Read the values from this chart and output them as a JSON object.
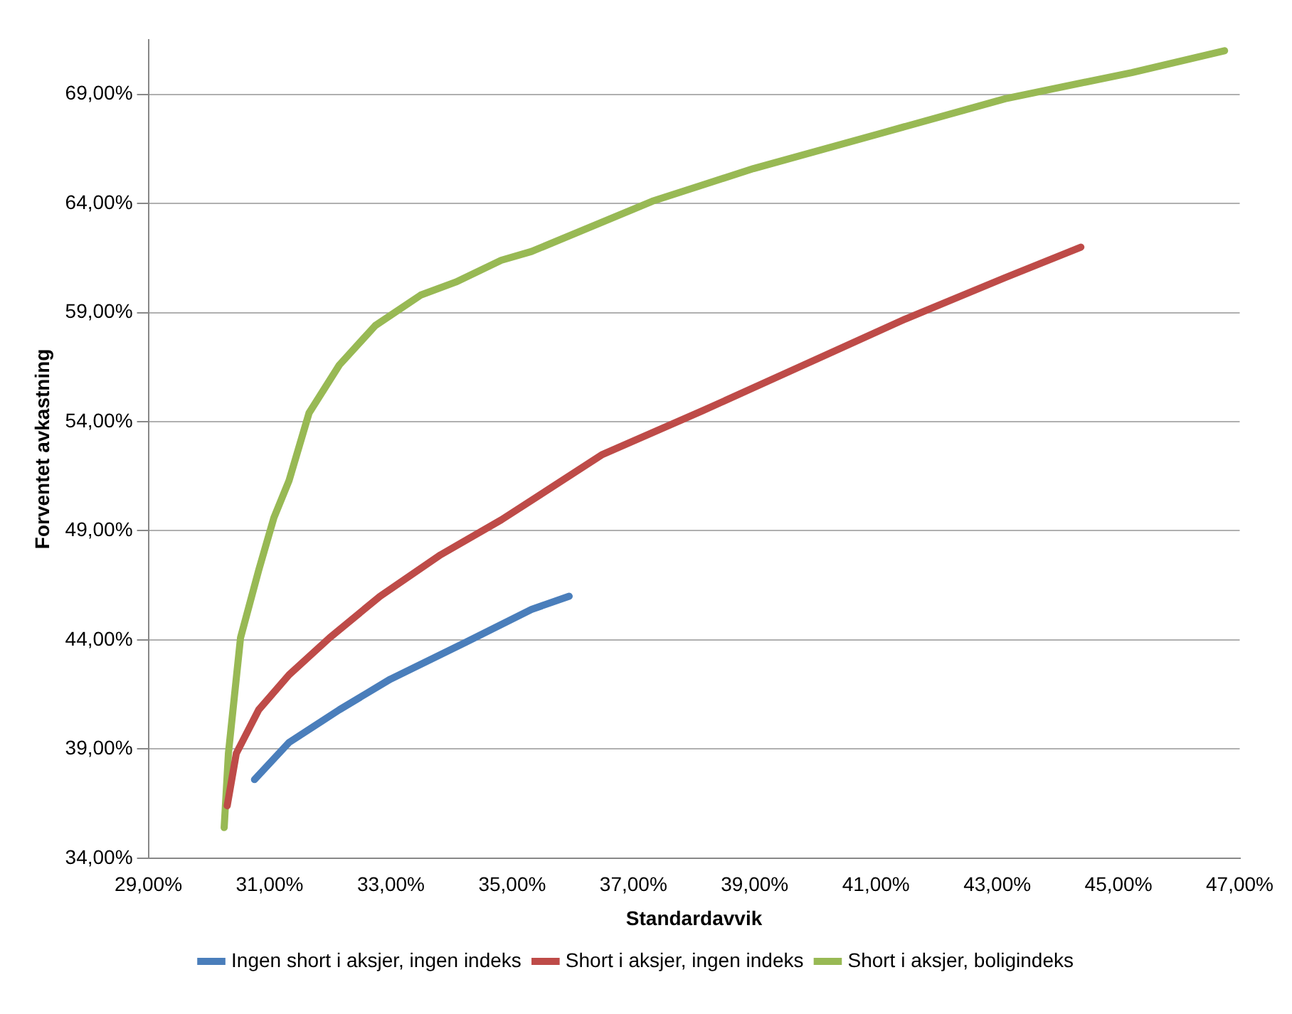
{
  "chart_data": {
    "type": "line",
    "xlabel": "Standardavvik",
    "ylabel": "Forventet avkastning",
    "xlim": [
      29,
      47
    ],
    "ylim": [
      34,
      71.5
    ],
    "xticks": [
      {
        "value": 29,
        "label": "29,00%"
      },
      {
        "value": 31,
        "label": "31,00%"
      },
      {
        "value": 33,
        "label": "33,00%"
      },
      {
        "value": 35,
        "label": "35,00%"
      },
      {
        "value": 37,
        "label": "37,00%"
      },
      {
        "value": 39,
        "label": "39,00%"
      },
      {
        "value": 41,
        "label": "41,00%"
      },
      {
        "value": 43,
        "label": "43,00%"
      },
      {
        "value": 45,
        "label": "45,00%"
      },
      {
        "value": 47,
        "label": "47,00%"
      }
    ],
    "yticks": [
      {
        "value": 34,
        "label": "34,00%"
      },
      {
        "value": 39,
        "label": "39,00%"
      },
      {
        "value": 44,
        "label": "44,00%"
      },
      {
        "value": 49,
        "label": "49,00%"
      },
      {
        "value": 54,
        "label": "54,00%"
      },
      {
        "value": 59,
        "label": "59,00%"
      },
      {
        "value": 64,
        "label": "64,00%"
      },
      {
        "value": 69,
        "label": "69,00%"
      }
    ],
    "grid": "y",
    "legend": "bottom",
    "marker": "none",
    "line_style": "solid",
    "series": [
      {
        "name": "Ingen short i aksjer, ingen indeks",
        "color": "#4a7ebb",
        "x": [
          30.75,
          31.32,
          32.15,
          32.99,
          34.24,
          35.32,
          35.94
        ],
        "values": [
          37.6,
          39.3,
          40.8,
          42.2,
          43.9,
          45.4,
          46.0
        ]
      },
      {
        "name": "Short i aksjer, ingen indeks",
        "color": "#be4b48",
        "x": [
          30.3,
          30.45,
          30.82,
          31.32,
          31.99,
          32.82,
          33.82,
          34.82,
          36.49,
          38.14,
          39.81,
          41.48,
          43.13,
          44.38
        ],
        "values": [
          36.4,
          38.8,
          40.8,
          42.4,
          44.1,
          46.0,
          47.9,
          49.5,
          52.5,
          54.5,
          56.6,
          58.7,
          60.6,
          62.0
        ]
      },
      {
        "name": "Short i aksjer, boligindeks",
        "color": "#98b954",
        "x": [
          30.25,
          30.32,
          30.52,
          30.82,
          31.07,
          31.32,
          31.65,
          32.15,
          32.74,
          33.49,
          34.07,
          34.82,
          35.32,
          37.31,
          38.98,
          41.06,
          43.13,
          45.22,
          46.75
        ],
        "values": [
          35.4,
          38.8,
          44.1,
          47.2,
          49.6,
          51.3,
          54.4,
          56.6,
          58.4,
          59.8,
          60.4,
          61.4,
          61.8,
          64.1,
          65.6,
          67.2,
          68.8,
          70.0,
          71.0
        ]
      }
    ]
  }
}
